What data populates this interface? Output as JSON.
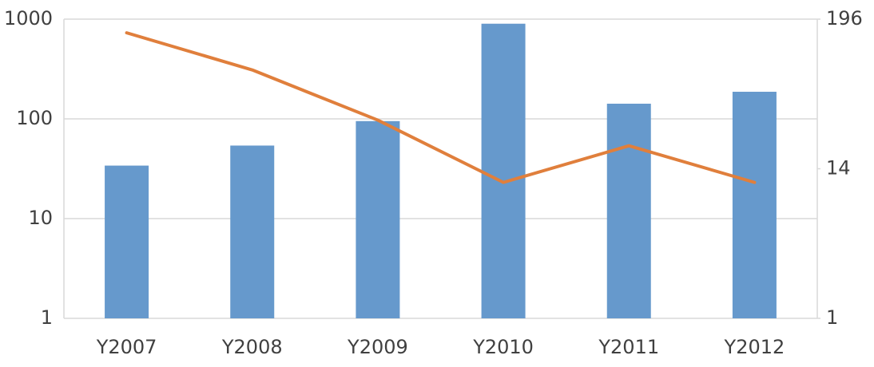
{
  "chart_data": {
    "type": "bar-line",
    "categories": [
      "Y2007",
      "Y2008",
      "Y2009",
      "Y2010",
      "Y2011",
      "Y2012"
    ],
    "series": [
      {
        "type": "bar",
        "color": "#6699cc",
        "values": [
          34,
          54,
          95,
          900,
          142,
          187
        ]
      },
      {
        "type": "line",
        "axis": "y2",
        "color": "#e07f3c",
        "values": [
          154,
          80,
          33,
          11,
          21,
          11
        ]
      }
    ],
    "ylim": [
      1,
      1000
    ],
    "yticks": [
      1,
      10,
      100,
      1000
    ],
    "ylog": true,
    "y2lim": [
      1,
      196
    ],
    "y2ticks": [
      1,
      14,
      196
    ],
    "y2log": true,
    "grid": true
  }
}
